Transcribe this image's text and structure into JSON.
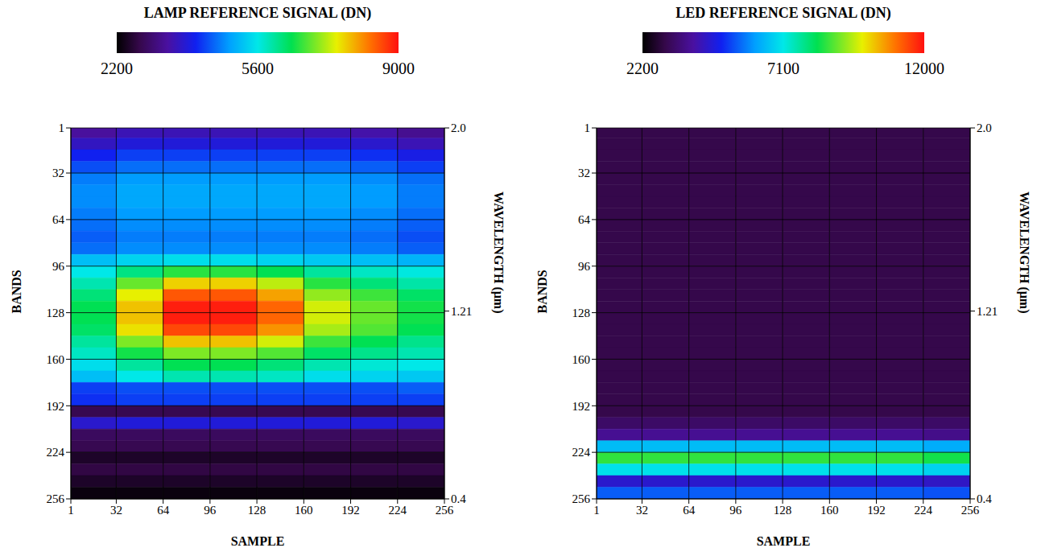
{
  "chart_data": [
    {
      "type": "heatmap",
      "grid": true,
      "colorbar": {
        "label": "LAMP REFERENCE SIGNAL (DN)",
        "range": [
          2200,
          9000
        ],
        "ticks": [
          2200,
          5600,
          9000
        ]
      },
      "x_label": "SAMPLE",
      "y_label": "BANDS",
      "y2_label": "WAVELENGTH (μm)",
      "xlim": [
        1,
        256
      ],
      "xticks": [
        1,
        32,
        64,
        96,
        128,
        160,
        192,
        224,
        256
      ],
      "ylim": [
        256,
        1
      ],
      "yticks": [
        1,
        32,
        64,
        96,
        128,
        160,
        192,
        224,
        256
      ],
      "y2lim": [
        0.4,
        2
      ],
      "y2ticks": [
        {
          "value": 2,
          "label": "2.0"
        },
        1.21,
        0.4
      ],
      "x_edges": [
        1,
        32,
        64,
        96,
        128,
        160,
        192,
        224,
        256
      ],
      "y_edges": [
        1,
        8,
        16,
        24,
        32,
        40,
        48,
        56,
        64,
        72,
        80,
        88,
        96,
        104,
        112,
        120,
        128,
        136,
        144,
        152,
        160,
        168,
        176,
        184,
        192,
        200,
        208,
        216,
        224,
        232,
        240,
        248,
        256
      ],
      "cells": [
        [
          3400,
          3600,
          3600,
          3600,
          3600,
          3600,
          3500,
          3300
        ],
        [
          3700,
          3900,
          3900,
          3900,
          3900,
          3900,
          3800,
          3600
        ],
        [
          4100,
          4300,
          4300,
          4300,
          4300,
          4300,
          4200,
          4000
        ],
        [
          4400,
          4600,
          4600,
          4600,
          4600,
          4600,
          4500,
          4300
        ],
        [
          4700,
          4900,
          4900,
          4900,
          4900,
          4900,
          4800,
          4600
        ],
        [
          4800,
          5000,
          5000,
          5000,
          5000,
          5000,
          4900,
          4700
        ],
        [
          4800,
          5000,
          5000,
          5000,
          5000,
          5000,
          4900,
          4700
        ],
        [
          4700,
          4900,
          4900,
          4900,
          4900,
          4900,
          4800,
          4600
        ],
        [
          4600,
          4800,
          4800,
          4800,
          4800,
          4800,
          4700,
          4500
        ],
        [
          4500,
          4700,
          4700,
          4700,
          4700,
          4700,
          4600,
          4400
        ],
        [
          4600,
          4800,
          4800,
          4800,
          4800,
          4800,
          4700,
          4500
        ],
        [
          5200,
          5400,
          5500,
          5500,
          5400,
          5300,
          5200,
          5100
        ],
        [
          5600,
          6150,
          6600,
          6600,
          6400,
          6000,
          5800,
          5650
        ],
        [
          5900,
          6900,
          7700,
          7700,
          7300,
          6600,
          6200,
          5950
        ],
        [
          6200,
          7500,
          8500,
          8500,
          8000,
          7100,
          6700,
          6300
        ],
        [
          6400,
          7800,
          8900,
          8900,
          8400,
          7400,
          6900,
          6500
        ],
        [
          6400,
          7800,
          8900,
          8900,
          8400,
          7400,
          6900,
          6500
        ],
        [
          6300,
          7600,
          8600,
          8600,
          8100,
          7200,
          6800,
          6400
        ],
        [
          6000,
          7000,
          7800,
          7800,
          7400,
          6700,
          6400,
          6100
        ],
        [
          5800,
          6500,
          7000,
          7000,
          6800,
          6300,
          6100,
          5900
        ],
        [
          5500,
          6000,
          6400,
          6400,
          6200,
          5900,
          5700,
          5600
        ],
        [
          5200,
          5600,
          5900,
          5900,
          5800,
          5500,
          5400,
          5300
        ],
        [
          4300,
          4400,
          4400,
          4400,
          4400,
          4400,
          4400,
          4500
        ],
        [
          4200,
          4300,
          4300,
          4300,
          4300,
          4300,
          4300,
          4300
        ],
        [
          2800,
          2800,
          2800,
          2800,
          2800,
          2800,
          2800,
          2800
        ],
        [
          3800,
          3900,
          3900,
          3900,
          3900,
          3900,
          3900,
          3800
        ],
        [
          2900,
          2900,
          2900,
          2900,
          2900,
          2900,
          2900,
          2900
        ],
        [
          2800,
          2800,
          2800,
          2800,
          2800,
          2800,
          2800,
          2800
        ],
        [
          2500,
          2500,
          2500,
          2500,
          2500,
          2500,
          2500,
          2500
        ],
        [
          2700,
          2700,
          2700,
          2700,
          2700,
          2700,
          2700,
          2700
        ],
        [
          2500,
          2500,
          2500,
          2500,
          2500,
          2500,
          2500,
          2500
        ],
        [
          2300,
          2300,
          2300,
          2300,
          2300,
          2300,
          2300,
          2300
        ]
      ]
    },
    {
      "type": "heatmap",
      "grid": true,
      "colorbar": {
        "label": "LED REFERENCE SIGNAL (DN)",
        "range": [
          2200,
          12000
        ],
        "ticks": [
          2200,
          7100,
          12000
        ]
      },
      "x_label": "SAMPLE",
      "y_label": "BANDS",
      "y2_label": "WAVELENGTH (μm)",
      "xlim": [
        1,
        256
      ],
      "xticks": [
        1,
        32,
        64,
        96,
        128,
        160,
        192,
        224,
        256
      ],
      "ylim": [
        256,
        1
      ],
      "yticks": [
        1,
        32,
        64,
        96,
        128,
        160,
        192,
        224,
        256
      ],
      "y2lim": [
        0.4,
        2
      ],
      "y2ticks": [
        {
          "value": 2,
          "label": "2.0"
        },
        1.21,
        0.4
      ],
      "x_edges": [
        1,
        32,
        64,
        96,
        128,
        160,
        192,
        224,
        256
      ],
      "y_edges": [
        1,
        8,
        16,
        24,
        32,
        40,
        48,
        56,
        64,
        72,
        80,
        88,
        96,
        104,
        112,
        120,
        128,
        136,
        144,
        152,
        160,
        168,
        176,
        184,
        192,
        200,
        208,
        216,
        224,
        232,
        240,
        248,
        256
      ],
      "cells": [
        [
          3000,
          3000,
          3000,
          3000,
          3000,
          3000,
          3000,
          3000
        ],
        [
          3000,
          3000,
          3000,
          3000,
          3000,
          3000,
          3000,
          3000
        ],
        [
          3000,
          3000,
          3000,
          3000,
          3000,
          3000,
          3000,
          3000
        ],
        [
          3000,
          3000,
          3000,
          3000,
          3000,
          3000,
          3000,
          3000
        ],
        [
          3000,
          3000,
          3000,
          3000,
          3000,
          3000,
          3000,
          3000
        ],
        [
          3000,
          3000,
          3000,
          3000,
          3000,
          3000,
          3000,
          3000
        ],
        [
          3000,
          3000,
          3000,
          3000,
          3000,
          3000,
          3000,
          3000
        ],
        [
          3000,
          3000,
          3000,
          3000,
          3000,
          3000,
          3000,
          3000
        ],
        [
          3000,
          3000,
          3000,
          3000,
          3000,
          3000,
          3000,
          3000
        ],
        [
          3000,
          3000,
          3000,
          3000,
          3000,
          3000,
          3000,
          3000
        ],
        [
          3000,
          3000,
          3000,
          3000,
          3000,
          3000,
          3000,
          3000
        ],
        [
          3000,
          3000,
          3000,
          3000,
          3000,
          3000,
          3000,
          3000
        ],
        [
          3000,
          3000,
          3000,
          3000,
          3000,
          3000,
          3000,
          3000
        ],
        [
          3000,
          3000,
          3000,
          3000,
          3000,
          3000,
          3000,
          3000
        ],
        [
          3000,
          3000,
          3000,
          3000,
          3000,
          3000,
          3000,
          3000
        ],
        [
          3000,
          3000,
          3000,
          3000,
          3000,
          3000,
          3000,
          3000
        ],
        [
          3000,
          3000,
          3000,
          3000,
          3000,
          3000,
          3000,
          3000
        ],
        [
          3000,
          3000,
          3000,
          3000,
          3000,
          3000,
          3000,
          3000
        ],
        [
          3000,
          3000,
          3000,
          3000,
          3000,
          3000,
          3000,
          3000
        ],
        [
          3000,
          3000,
          3000,
          3000,
          3000,
          3000,
          3000,
          3000
        ],
        [
          3000,
          3000,
          3000,
          3000,
          3000,
          3000,
          3000,
          3000
        ],
        [
          3000,
          3000,
          3000,
          3000,
          3000,
          3000,
          3000,
          3000
        ],
        [
          3000,
          3000,
          3000,
          3000,
          3000,
          3000,
          3000,
          3000
        ],
        [
          3000,
          3000,
          3000,
          3000,
          3000,
          3000,
          3000,
          3000
        ],
        [
          3000,
          3000,
          3000,
          3000,
          3000,
          3000,
          3000,
          3000
        ],
        [
          3300,
          3300,
          3300,
          3300,
          3300,
          3300,
          3300,
          3300
        ],
        [
          3800,
          3800,
          3800,
          3800,
          3800,
          3800,
          3800,
          3700
        ],
        [
          6500,
          6500,
          6500,
          6500,
          6500,
          6500,
          6500,
          6300
        ],
        [
          8600,
          8600,
          8600,
          8600,
          8600,
          8600,
          8600,
          8400
        ],
        [
          7000,
          7000,
          7000,
          7000,
          7000,
          7000,
          7000,
          6800
        ],
        [
          4500,
          4500,
          4500,
          4500,
          4500,
          4500,
          4500,
          4400
        ],
        [
          5500,
          5500,
          5500,
          5500,
          5500,
          5500,
          5500,
          5400
        ]
      ]
    }
  ]
}
